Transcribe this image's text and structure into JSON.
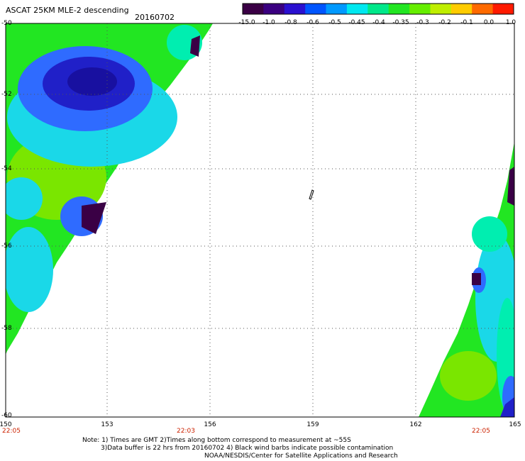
{
  "title": "ASCAT 25KM MLE-2 descending",
  "date": "20160702",
  "colorbar": {
    "labels": [
      "-15.0",
      "-1.0",
      "-0.8",
      "-0.6",
      "-0.5",
      "-0.45",
      "-0.4",
      "-0.35",
      "-0.3",
      "-0.2",
      "-0.1",
      "0.0",
      "1.0"
    ],
    "colors": [
      "#3a0045",
      "#3a0080",
      "#2a10d0",
      "#0055ff",
      "#0099ff",
      "#00e8f0",
      "#00e88a",
      "#22e622",
      "#66ee00",
      "#bfee00",
      "#ffcc00",
      "#ff6a00",
      "#ff1a00"
    ]
  },
  "map": {
    "lat_labels": [
      "-50",
      "-52",
      "-54",
      "-56",
      "-58",
      "-60"
    ],
    "lon_labels": [
      "150",
      "153",
      "156",
      "159",
      "162",
      "165"
    ],
    "time_labels": [
      "22:05",
      "22:03",
      "22:05"
    ],
    "swath_colors": {
      "deep": "#3a0045",
      "dark_blue": "#2020c8",
      "blue": "#2f6bff",
      "cyan": "#1ad8e8",
      "aqua": "#00eeb0",
      "green": "#22e622",
      "lime": "#7ae600",
      "yellowgreen": "#a8ee00"
    }
  },
  "notes": {
    "line1": "Note: 1) Times are GMT 2)Times along bottom correspond to measurement at ~55S",
    "line2": "3)Data buffer is 22 hrs from 20160702 4) Black wind barbs indicate possible contamination",
    "line3": "NOAA/NESDIS/Center for Satellite Applications and Research"
  }
}
